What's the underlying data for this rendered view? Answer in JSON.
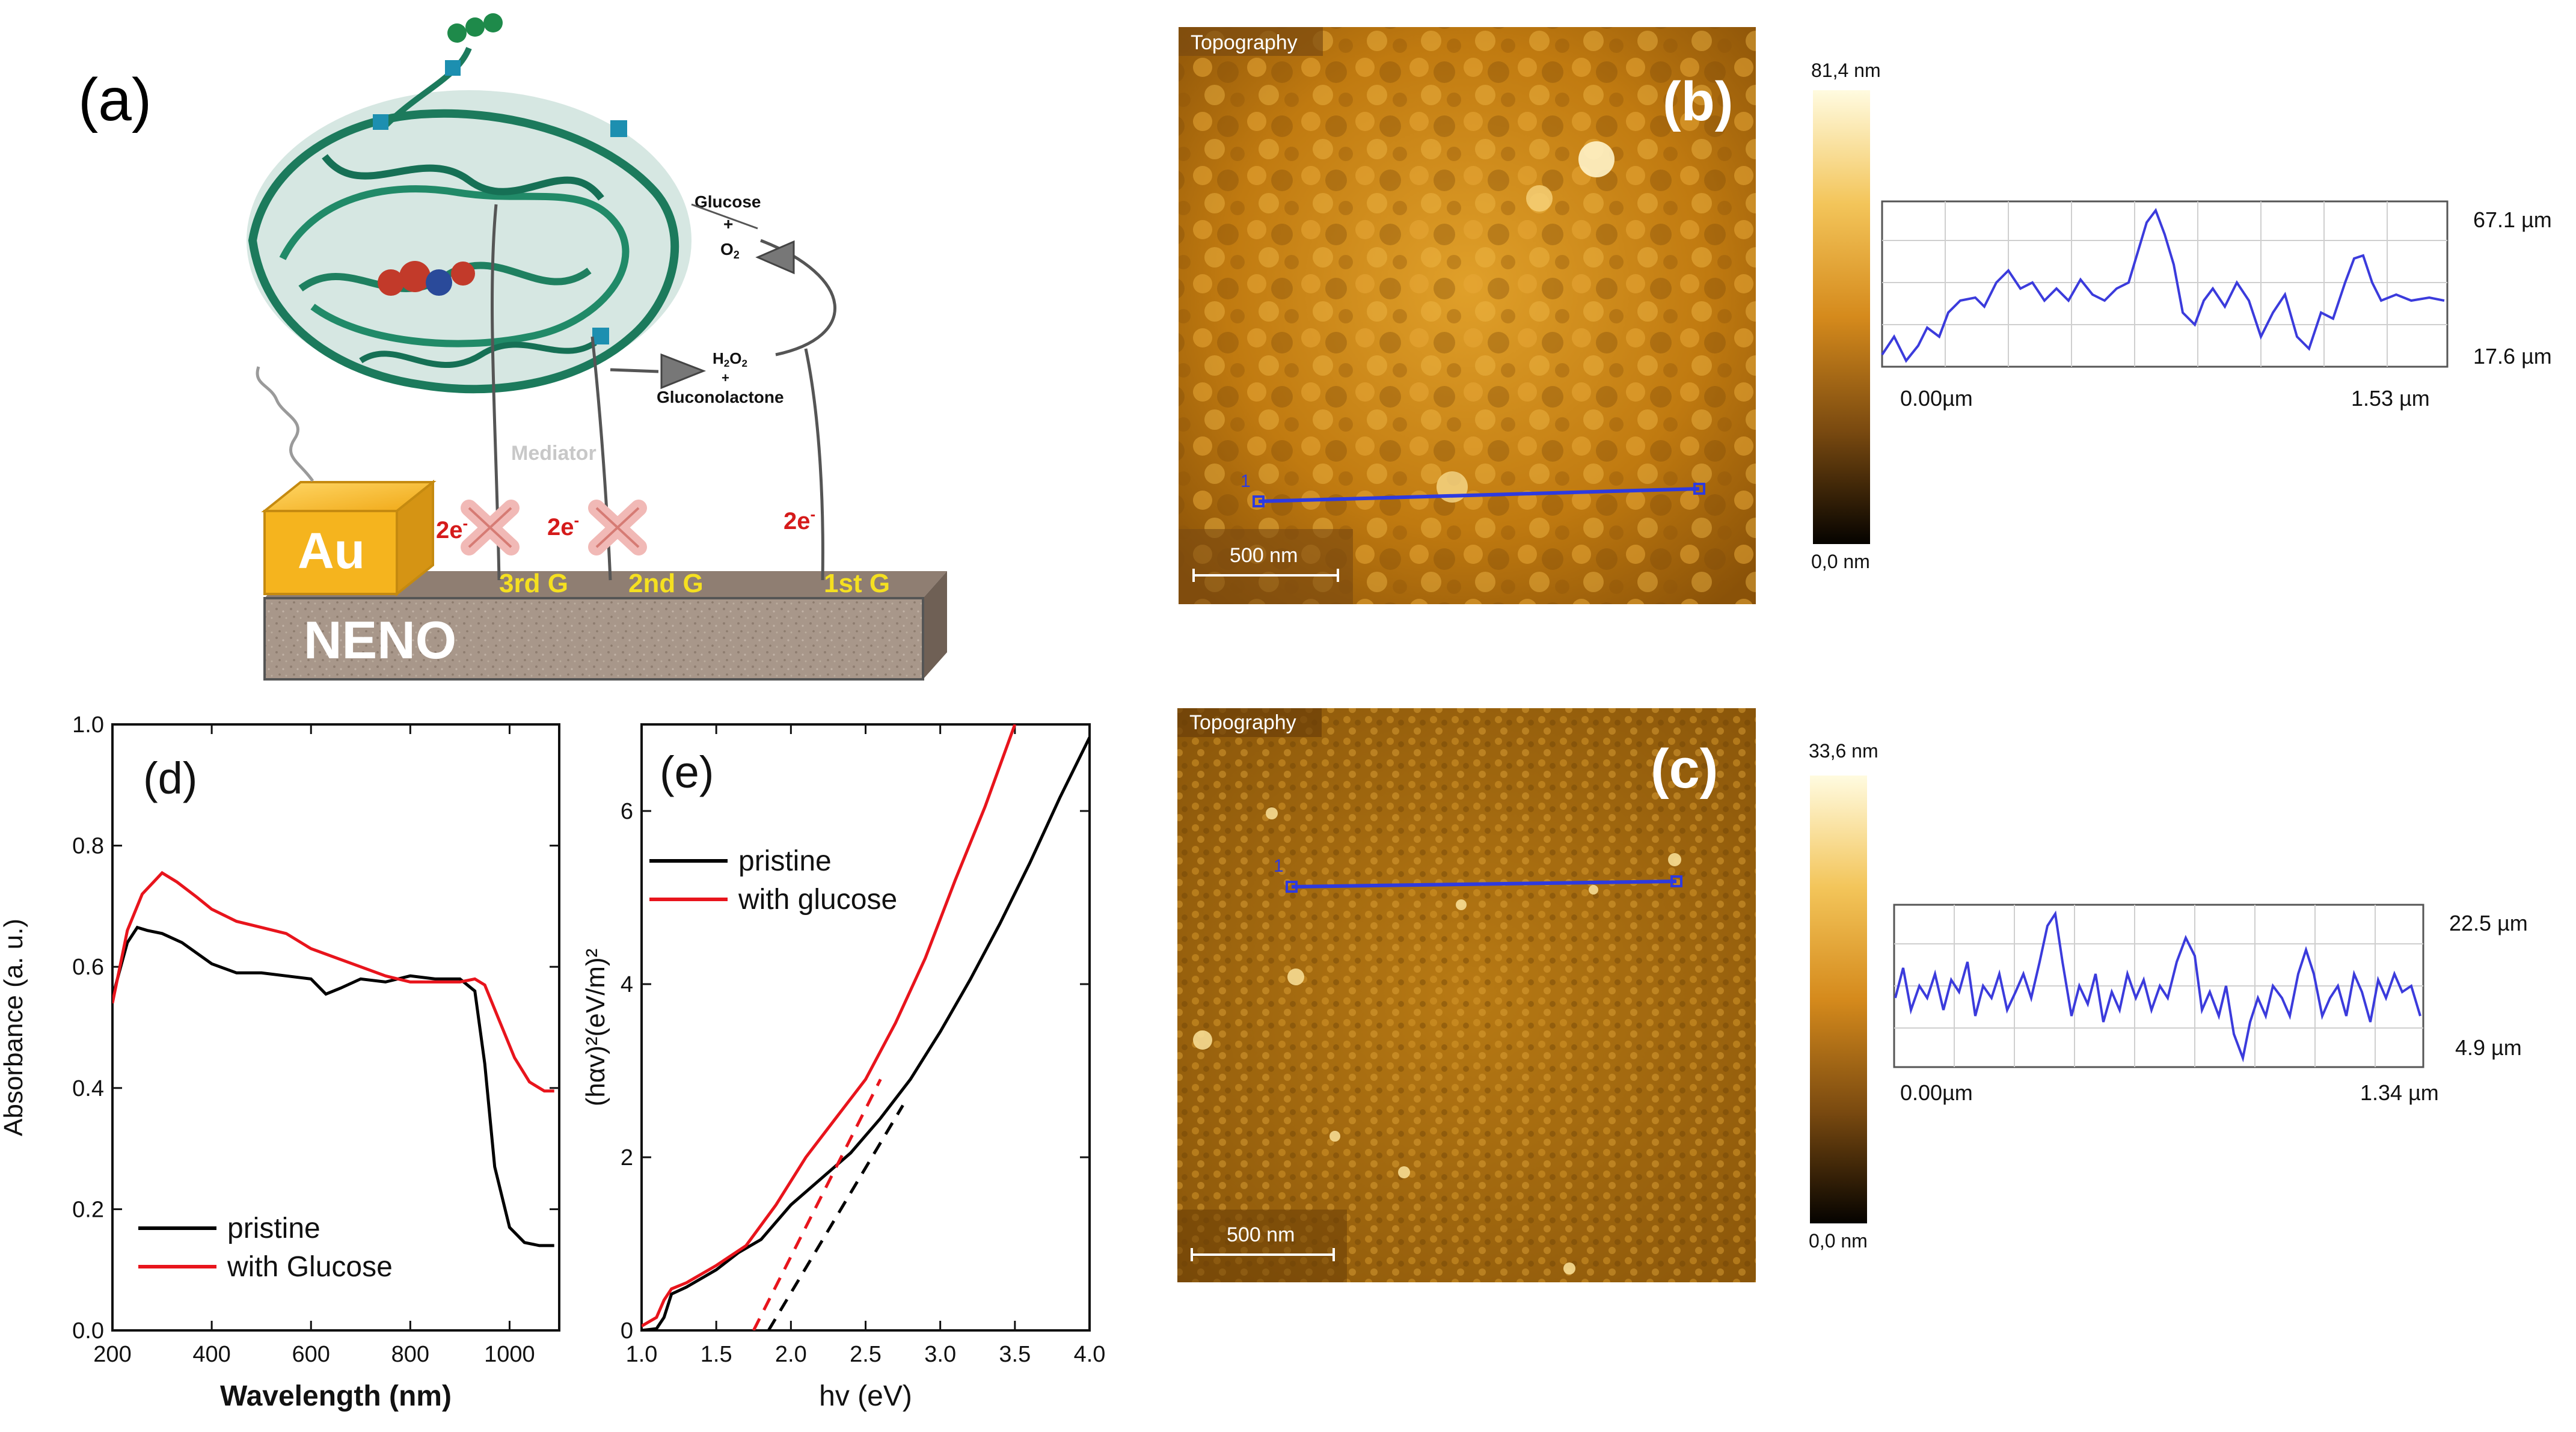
{
  "panels": {
    "a": {
      "label": "(a)",
      "glucose": "Glucose",
      "plus1": "+",
      "o2": "O",
      "o2_sub": "2",
      "h2o2_h": "H",
      "h2o2_sub1": "2",
      "h2o2_o": "O",
      "h2o2_sub2": "2",
      "plus2": "+",
      "gluconolactone": "Gluconolactone",
      "mediator": "Mediator",
      "e1": "2e",
      "e2": "2e",
      "e3": "2e",
      "e_sup": "-",
      "g3": "3rd G",
      "g2": "2nd G",
      "g1": "1st G",
      "au": "Au",
      "neno": "NENO"
    },
    "b": {
      "label": "(b)",
      "image_title": "Topography",
      "scalebar": "500 nm",
      "marker": "1",
      "colorbar_max": "81,4 nm",
      "colorbar_min": "0,0 nm",
      "profile_max": "67.1 µm",
      "profile_min": "17.6 µm",
      "profile_x0": "0.00µm",
      "profile_x1": "1.53 µm"
    },
    "c": {
      "label": "(c)",
      "image_title": "Topography",
      "scalebar": "500 nm",
      "marker": "1",
      "colorbar_max": "33,6 nm",
      "colorbar_min": "0,0 nm",
      "profile_max": "22.5 µm",
      "profile_min": "4.9 µm",
      "profile_x0": "0.00µm",
      "profile_x1": "1.34 µm"
    }
  },
  "colors": {
    "pristine": "#000000",
    "glucose": "#e8141c",
    "profile": "#3b3bdc",
    "enzyme": "#1c7a5c",
    "au": "#f2b01e",
    "neno": "#a8978a"
  },
  "chart_data": [
    {
      "panel": "d",
      "label": "(d)",
      "type": "line",
      "xlabel": "Wavelength (nm)",
      "ylabel": "Absorbance (a. u.)",
      "xlim": [
        200,
        1100
      ],
      "ylim": [
        0.0,
        1.0
      ],
      "xticks": [
        "200",
        "400",
        "600",
        "800",
        "1000"
      ],
      "yticks": [
        "0.0",
        "0.2",
        "0.4",
        "0.6",
        "0.8",
        "1.0"
      ],
      "legend": [
        "pristine",
        "with Glucose"
      ],
      "series": [
        {
          "name": "pristine",
          "x": [
            200,
            230,
            250,
            270,
            300,
            340,
            400,
            450,
            500,
            550,
            600,
            630,
            660,
            700,
            750,
            800,
            850,
            900,
            930,
            950,
            970,
            1000,
            1030,
            1060,
            1090
          ],
          "y": [
            0.55,
            0.64,
            0.665,
            0.66,
            0.655,
            0.64,
            0.605,
            0.59,
            0.59,
            0.585,
            0.58,
            0.555,
            0.565,
            0.58,
            0.575,
            0.585,
            0.58,
            0.58,
            0.56,
            0.44,
            0.27,
            0.17,
            0.145,
            0.14,
            0.14
          ]
        },
        {
          "name": "with Glucose",
          "x": [
            200,
            230,
            260,
            300,
            330,
            370,
            400,
            450,
            500,
            550,
            600,
            650,
            700,
            750,
            800,
            850,
            900,
            930,
            950,
            980,
            1010,
            1040,
            1070,
            1090
          ],
          "y": [
            0.54,
            0.66,
            0.72,
            0.755,
            0.74,
            0.715,
            0.695,
            0.675,
            0.665,
            0.655,
            0.63,
            0.615,
            0.6,
            0.585,
            0.575,
            0.575,
            0.575,
            0.58,
            0.57,
            0.51,
            0.45,
            0.41,
            0.395,
            0.395
          ]
        }
      ]
    },
    {
      "panel": "e",
      "label": "(e)",
      "type": "line",
      "xlabel": "hv (eV)",
      "ylabel": "(hαv)²(eV/m)²",
      "xlim": [
        1.0,
        4.0
      ],
      "ylim": [
        0,
        7
      ],
      "xticks": [
        "1.0",
        "1.5",
        "2.0",
        "2.5",
        "3.0",
        "3.5",
        "4.0"
      ],
      "yticks": [
        "0",
        "2",
        "4",
        "6"
      ],
      "legend": [
        "pristine",
        "with glucose"
      ],
      "series": [
        {
          "name": "pristine",
          "x": [
            1.0,
            1.1,
            1.15,
            1.2,
            1.3,
            1.5,
            1.65,
            1.8,
            2.0,
            2.2,
            2.4,
            2.6,
            2.8,
            3.0,
            3.2,
            3.4,
            3.6,
            3.8,
            4.0
          ],
          "y": [
            0.0,
            0.02,
            0.15,
            0.42,
            0.5,
            0.7,
            0.9,
            1.05,
            1.45,
            1.75,
            2.05,
            2.45,
            2.9,
            3.45,
            4.05,
            4.7,
            5.4,
            6.15,
            6.85
          ]
        },
        {
          "name": "with glucose",
          "x": [
            1.0,
            1.1,
            1.15,
            1.2,
            1.3,
            1.5,
            1.7,
            1.9,
            2.1,
            2.3,
            2.5,
            2.7,
            2.9,
            3.1,
            3.3,
            3.5
          ],
          "y": [
            0.05,
            0.15,
            0.35,
            0.48,
            0.55,
            0.75,
            0.98,
            1.45,
            2.0,
            2.45,
            2.9,
            3.55,
            4.3,
            5.2,
            6.05,
            7.0
          ]
        }
      ],
      "fits": [
        {
          "name": "pristine fit",
          "x": [
            1.85,
            2.75
          ],
          "y": [
            0.0,
            2.6
          ]
        },
        {
          "name": "glucose fit",
          "x": [
            1.75,
            2.6
          ],
          "y": [
            0.0,
            2.9
          ]
        }
      ]
    }
  ]
}
